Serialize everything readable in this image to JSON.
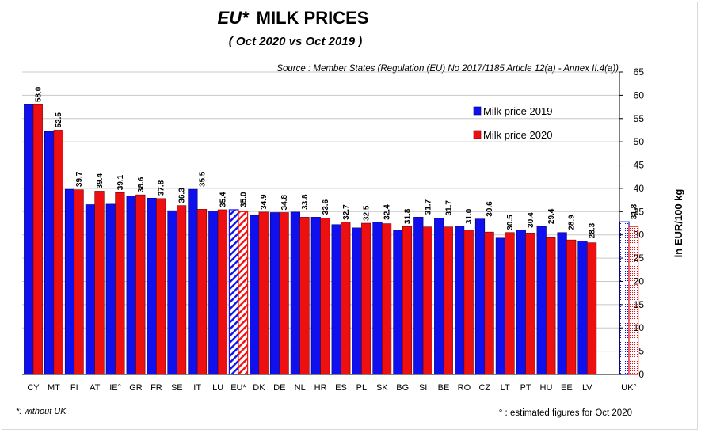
{
  "chart_data": {
    "type": "bar",
    "title_prefix": "EU*",
    "title_main": "MILK PRICES",
    "subtitle": "( Oct 2020   vs   Oct 2019 )",
    "source": "Source : Member States (Regulation (EU) No 2017/1185 Article 12(a) - Annex II.4(a))",
    "ylabel": "in EUR/100 kg",
    "ylim": [
      0,
      65
    ],
    "yticks": [
      0,
      5,
      10,
      15,
      20,
      25,
      30,
      35,
      40,
      45,
      50,
      55,
      60,
      65
    ],
    "grid": true,
    "legend_position": "top-right",
    "categories": [
      "CY",
      "MT",
      "FI",
      "AT",
      "IE°",
      "GR",
      "FR",
      "SE",
      "IT",
      "LU",
      "EU*",
      "DK",
      "DE",
      "NL",
      "HR",
      "ES",
      "PL",
      "SK",
      "BG",
      "SI",
      "BE",
      "RO",
      "CZ",
      "LT",
      "PT",
      "HU",
      "EE",
      "LV",
      "UK°"
    ],
    "series": [
      {
        "name": "Milk price 2019",
        "color": "#1010ee",
        "values": [
          58.0,
          52.2,
          39.8,
          36.5,
          36.6,
          38.4,
          37.9,
          35.2,
          39.8,
          35.1,
          35.4,
          34.2,
          34.8,
          34.9,
          33.8,
          32.2,
          31.5,
          32.7,
          31.0,
          33.8,
          33.6,
          31.8,
          33.4,
          29.3,
          31.0,
          31.8,
          30.5,
          28.7,
          32.8
        ]
      },
      {
        "name": "Milk price 2020",
        "color": "#ee1010",
        "values": [
          58.0,
          52.5,
          39.7,
          39.4,
          39.1,
          38.6,
          37.8,
          36.3,
          35.5,
          35.4,
          35.0,
          34.9,
          34.8,
          33.8,
          33.6,
          32.7,
          32.5,
          32.4,
          31.8,
          31.7,
          31.7,
          31.0,
          30.6,
          30.5,
          30.4,
          29.4,
          28.9,
          28.3,
          31.8
        ]
      }
    ],
    "value_labels": [
      "58.0",
      "52.5",
      "39.7",
      "39.4",
      "39.1",
      "38.6",
      "37.8",
      "36.3",
      "35.5",
      "35.4",
      "35.0",
      "34.9",
      "34.8",
      "33.8",
      "33.6",
      "32.7",
      "32.5",
      "32.4",
      "31.8",
      "31.7",
      "31.7",
      "31.0",
      "30.6",
      "30.5",
      "30.4",
      "29.4",
      "28.9",
      "28.3",
      "31.8"
    ],
    "hatched_categories": [
      "EU*"
    ],
    "dotted_categories": [
      "UK°"
    ],
    "footnote_left": "*: without UK",
    "footnote_right": "° : estimated figures for Oct 2020"
  }
}
